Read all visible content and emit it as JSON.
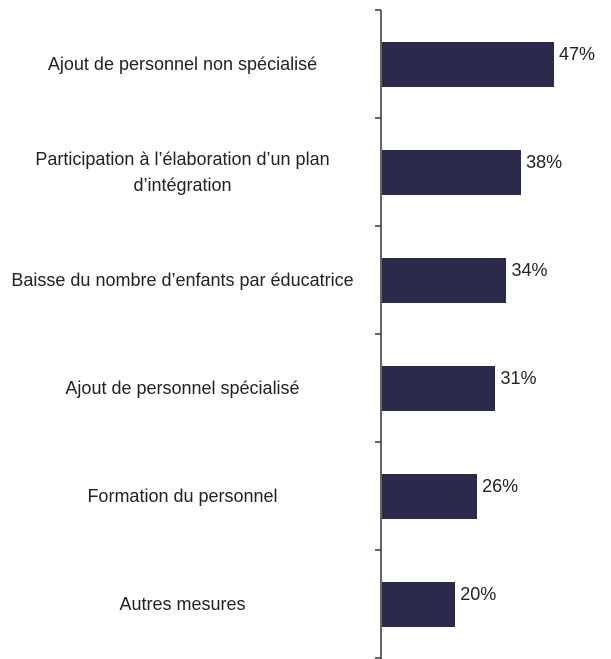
{
  "chart_data": {
    "type": "barh",
    "categories": [
      "Ajout de personnel non spécialisé",
      "Participation à l’élaboration d’un plan d’intégration",
      "Baisse du nombre d’enfants par éducatrice",
      "Ajout de personnel spécialisé",
      "Formation du personnel",
      "Autres mesures"
    ],
    "values": [
      47,
      38,
      34,
      31,
      26,
      20
    ],
    "value_labels": [
      "47%",
      "38%",
      "34%",
      "31%",
      "26%",
      "20%"
    ],
    "color": "#2b2a4c"
  }
}
